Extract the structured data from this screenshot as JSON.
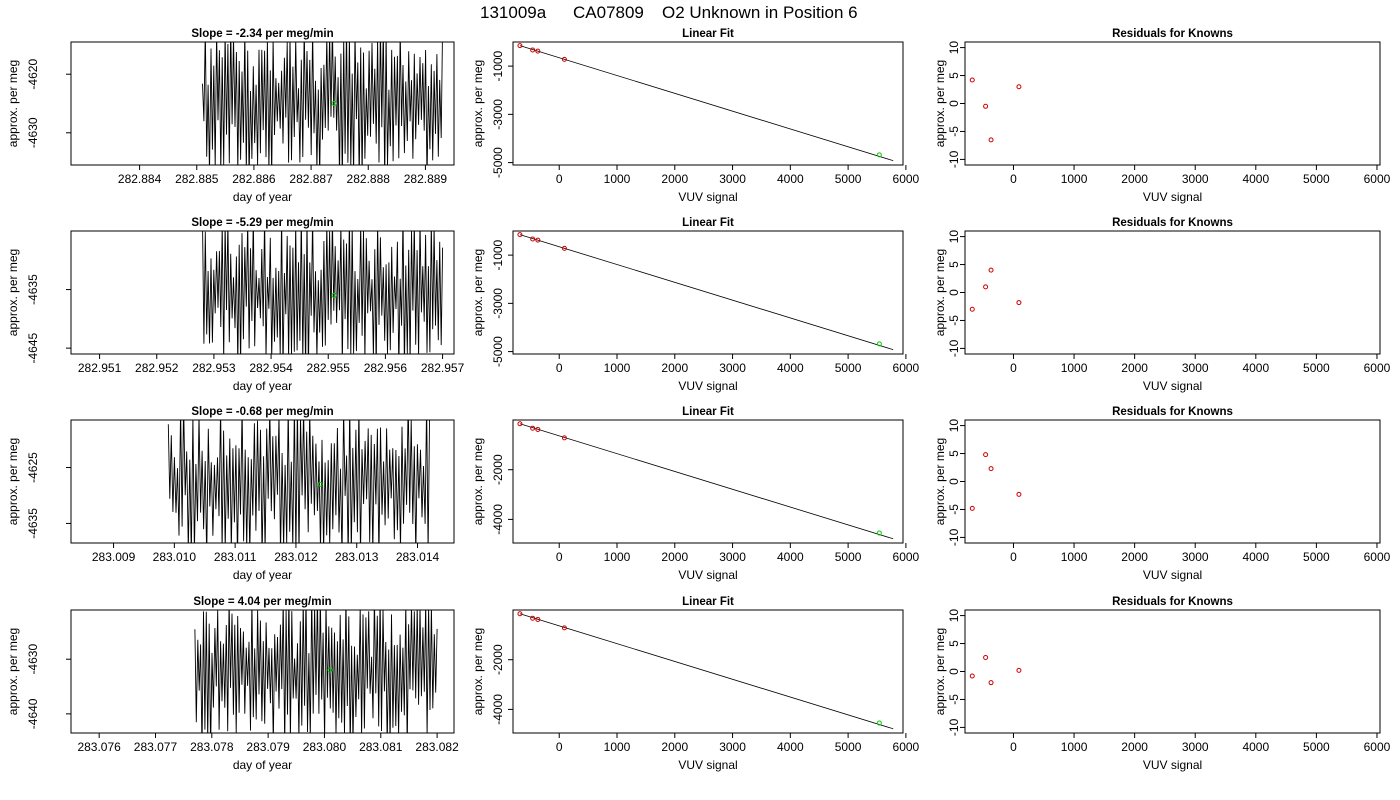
{
  "figure": {
    "title_id": "131009a",
    "title_cyl": "CA07809",
    "title_desc": "O2 Unknown in Position  6"
  },
  "colors": {
    "known": "#cc0000",
    "unknown": "#00cc00",
    "line": "#000000"
  },
  "chart_data": [
    {
      "row": 1,
      "series_plot": {
        "type": "line",
        "title": "Slope =  -2.34  per meg/min",
        "xlabel": "day of year",
        "ylabel": "approx. per meg",
        "xlim": [
          282.8828,
          282.8895
        ],
        "ylim": [
          -4635.5,
          -4614.5
        ],
        "xticks": [
          282.884,
          282.885,
          282.886,
          282.887,
          282.888,
          282.889
        ],
        "xtick_labels": [
          "282.884",
          "282.885",
          "282.886",
          "282.887",
          "282.888",
          "282.889"
        ],
        "yticks": [
          -4620,
          -4630
        ],
        "ytick_labels": [
          "-4620",
          "-4630"
        ],
        "trace_start": 282.8851,
        "trace_end": 282.8893,
        "mean_point": {
          "x": 282.8874,
          "y": -4625
        }
      },
      "fit_plot": {
        "type": "scatter",
        "title": "Linear Fit",
        "xlabel": "VUV signal",
        "ylabel": "approx. per meg",
        "xlim": [
          -800,
          5950
        ],
        "ylim": [
          -5100,
          0
        ],
        "xticks": [
          0,
          1000,
          2000,
          3000,
          4000,
          5000,
          6000
        ],
        "yticks": [
          -1000,
          -3000,
          -5000
        ],
        "ytick_labels": [
          "-1000",
          "-3000",
          "-5000"
        ],
        "known_points": [
          [
            -680,
            -150
          ],
          [
            -460,
            -330
          ],
          [
            -370,
            -380
          ],
          [
            90,
            -720
          ]
        ],
        "unknown_point": [
          5540,
          -4680
        ],
        "fit_line": [
          [
            -680,
            -150
          ],
          [
            5780,
            -4920
          ]
        ]
      },
      "resid_plot": {
        "type": "scatter",
        "title": "Residuals for Knowns",
        "xlabel": "VUV signal",
        "ylabel": "approx. per meg",
        "xlim": [
          -800,
          6050
        ],
        "ylim": [
          -11,
          11
        ],
        "xticks": [
          0,
          1000,
          2000,
          3000,
          4000,
          5000,
          6000
        ],
        "yticks": [
          10,
          5,
          0,
          -5,
          -10
        ],
        "points": [
          [
            -680,
            4.2
          ],
          [
            -460,
            -0.5
          ],
          [
            -370,
            -6.5
          ],
          [
            90,
            3.0
          ]
        ]
      }
    },
    {
      "row": 2,
      "series_plot": {
        "type": "line",
        "title": "Slope =  -5.29  per meg/min",
        "xlabel": "day of year",
        "ylabel": "approx. per meg",
        "xlim": [
          282.9505,
          282.9572
        ],
        "ylim": [
          -4646,
          -4625
        ],
        "xticks": [
          282.951,
          282.952,
          282.953,
          282.954,
          282.955,
          282.956,
          282.957
        ],
        "xtick_labels": [
          "282.951",
          "282.952",
          "282.953",
          "282.954",
          "282.955",
          "282.956",
          "282.957"
        ],
        "yticks": [
          -4635,
          -4645
        ],
        "ytick_labels": [
          "-4635",
          "-4645"
        ],
        "trace_start": 282.9528,
        "trace_end": 282.957,
        "mean_point": {
          "x": 282.9551,
          "y": -4636
        }
      },
      "fit_plot": {
        "type": "scatter",
        "title": "Linear Fit",
        "xlabel": "VUV signal",
        "ylabel": "approx. per meg",
        "xlim": [
          -800,
          5950
        ],
        "ylim": [
          -5100,
          0
        ],
        "xticks": [
          0,
          1000,
          2000,
          3000,
          4000,
          5000,
          6000
        ],
        "yticks": [
          -1000,
          -3000,
          -5000
        ],
        "ytick_labels": [
          "-1000",
          "-3000",
          "-5000"
        ],
        "known_points": [
          [
            -680,
            -150
          ],
          [
            -460,
            -330
          ],
          [
            -370,
            -380
          ],
          [
            90,
            -720
          ]
        ],
        "unknown_point": [
          5540,
          -4680
        ],
        "fit_line": [
          [
            -680,
            -150
          ],
          [
            5780,
            -4920
          ]
        ]
      },
      "resid_plot": {
        "type": "scatter",
        "title": "Residuals for Knowns",
        "xlabel": "VUV signal",
        "ylabel": "approx. per meg",
        "xlim": [
          -800,
          6050
        ],
        "ylim": [
          -11,
          11
        ],
        "xticks": [
          0,
          1000,
          2000,
          3000,
          4000,
          5000,
          6000
        ],
        "yticks": [
          10,
          5,
          0,
          -5,
          -10
        ],
        "points": [
          [
            -680,
            -3.0
          ],
          [
            -460,
            1.0
          ],
          [
            -370,
            4.0
          ],
          [
            90,
            -1.8
          ]
        ]
      }
    },
    {
      "row": 3,
      "series_plot": {
        "type": "line",
        "title": "Slope =  -0.68  per meg/min",
        "xlabel": "day of year",
        "ylabel": "approx. per meg",
        "xlim": [
          283.0083,
          283.0146
        ],
        "ylim": [
          -4638.5,
          -4616.5
        ],
        "xticks": [
          283.009,
          283.01,
          283.011,
          283.012,
          283.013,
          283.014
        ],
        "xtick_labels": [
          "283.009",
          "283.010",
          "283.011",
          "283.012",
          "283.013",
          "283.014"
        ],
        "yticks": [
          -4625,
          -4635
        ],
        "ytick_labels": [
          "-4625",
          "-4635"
        ],
        "trace_start": 283.0099,
        "trace_end": 283.0142,
        "mean_point": {
          "x": 283.0124,
          "y": -4628
        }
      },
      "fit_plot": {
        "type": "scatter",
        "title": "Linear Fit",
        "xlabel": "VUV signal",
        "ylabel": "approx. per meg",
        "xlim": [
          -800,
          5950
        ],
        "ylim": [
          -4950,
          0
        ],
        "xticks": [
          0,
          1000,
          2000,
          3000,
          4000,
          5000,
          6000
        ],
        "yticks": [
          -2000,
          -4000
        ],
        "ytick_labels": [
          "-2000",
          "-4000"
        ],
        "known_points": [
          [
            -680,
            -150
          ],
          [
            -460,
            -330
          ],
          [
            -370,
            -380
          ],
          [
            90,
            -720
          ]
        ],
        "unknown_point": [
          5540,
          -4550
        ],
        "fit_line": [
          [
            -680,
            -150
          ],
          [
            5780,
            -4780
          ]
        ]
      },
      "resid_plot": {
        "type": "scatter",
        "title": "Residuals for Knowns",
        "xlabel": "VUV signal",
        "ylabel": "approx. per meg",
        "xlim": [
          -800,
          6050
        ],
        "ylim": [
          -11,
          11
        ],
        "xticks": [
          0,
          1000,
          2000,
          3000,
          4000,
          5000,
          6000
        ],
        "yticks": [
          10,
          5,
          0,
          -5,
          -10
        ],
        "points": [
          [
            -680,
            -4.8
          ],
          [
            -460,
            4.8
          ],
          [
            -370,
            2.3
          ],
          [
            90,
            -2.3
          ]
        ]
      }
    },
    {
      "row": 4,
      "series_plot": {
        "type": "line",
        "title": "Slope =  4.04  per meg/min",
        "xlabel": "day of year",
        "ylabel": "approx. per meg",
        "xlim": [
          283.0755,
          283.0823
        ],
        "ylim": [
          -4643.5,
          -4621
        ],
        "xticks": [
          283.076,
          283.077,
          283.078,
          283.079,
          283.08,
          283.081,
          283.082
        ],
        "xtick_labels": [
          "283.076",
          "283.077",
          "283.078",
          "283.079",
          "283.080",
          "283.081",
          "283.082"
        ],
        "yticks": [
          -4630,
          -4640
        ],
        "ytick_labels": [
          "-4630",
          "-4640"
        ],
        "trace_start": 283.0777,
        "trace_end": 283.082,
        "mean_point": {
          "x": 283.0801,
          "y": -4632
        }
      },
      "fit_plot": {
        "type": "scatter",
        "title": "Linear Fit",
        "xlabel": "VUV signal",
        "ylabel": "approx. per meg",
        "xlim": [
          -800,
          5950
        ],
        "ylim": [
          -4950,
          0
        ],
        "xticks": [
          0,
          1000,
          2000,
          3000,
          4000,
          5000,
          6000
        ],
        "yticks": [
          -2000,
          -4000
        ],
        "ytick_labels": [
          "-2000",
          "-4000"
        ],
        "known_points": [
          [
            -680,
            -150
          ],
          [
            -460,
            -330
          ],
          [
            -370,
            -380
          ],
          [
            90,
            -720
          ]
        ],
        "unknown_point": [
          5540,
          -4550
        ],
        "fit_line": [
          [
            -680,
            -150
          ],
          [
            5780,
            -4780
          ]
        ]
      },
      "resid_plot": {
        "type": "scatter",
        "title": "Residuals for Knowns",
        "xlabel": "VUV signal",
        "ylabel": "approx. per meg",
        "xlim": [
          -800,
          6050
        ],
        "ylim": [
          -11,
          11
        ],
        "xticks": [
          0,
          1000,
          2000,
          3000,
          4000,
          5000,
          6000
        ],
        "yticks": [
          10,
          5,
          0,
          -5,
          -10
        ],
        "points": [
          [
            -680,
            -0.8
          ],
          [
            -460,
            2.5
          ],
          [
            -370,
            -2.0
          ],
          [
            90,
            0.2
          ]
        ]
      }
    }
  ]
}
